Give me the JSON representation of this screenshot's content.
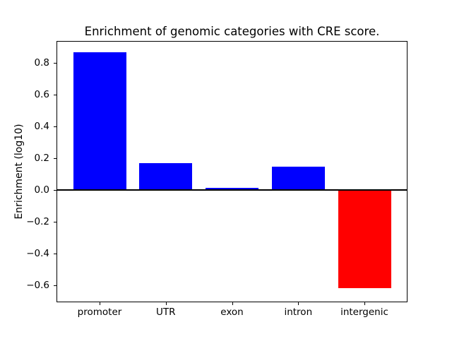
{
  "chart_data": {
    "type": "bar",
    "title": "Enrichment of genomic categories with CRE score.",
    "xlabel": "",
    "ylabel": "Enrichment (log10)",
    "categories": [
      "promoter",
      "UTR",
      "exon",
      "intron",
      "intergenic"
    ],
    "values": [
      0.865,
      0.17,
      0.013,
      0.145,
      -0.62
    ],
    "colors": [
      "#0000ff",
      "#0000ff",
      "#0000ff",
      "#0000ff",
      "#ff0000"
    ],
    "bar_width": 0.8,
    "ylim": [
      -0.703,
      0.933
    ],
    "xlim": [
      -0.64,
      4.64
    ],
    "yticks": [
      0.8,
      0.6,
      0.4,
      0.2,
      0.0,
      -0.2,
      -0.4,
      -0.6
    ],
    "ytick_labels": [
      "0.8",
      "0.6",
      "0.4",
      "0.2",
      "0.0",
      "−0.2",
      "−0.4",
      "−0.6"
    ],
    "zero_line": true,
    "grid": false,
    "legend": "none",
    "background_color": "#ffffff",
    "axis_color": "#000000"
  }
}
